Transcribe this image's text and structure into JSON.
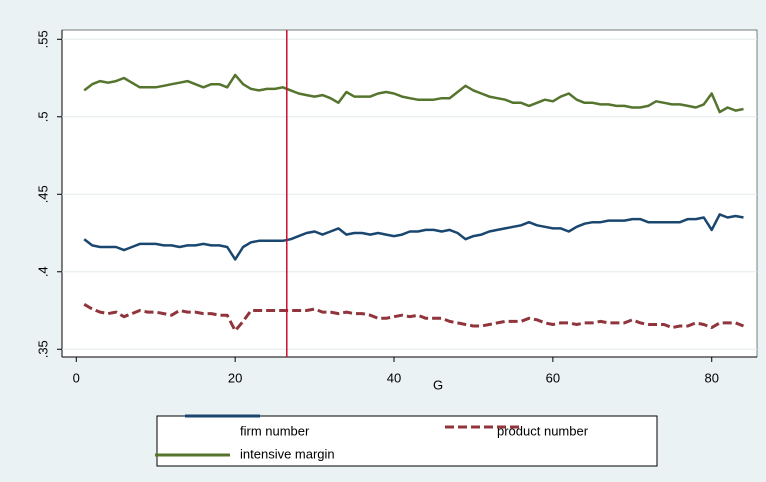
{
  "chart_data": {
    "type": "line",
    "xlabel": "G",
    "x": [
      1,
      2,
      3,
      4,
      5,
      6,
      7,
      8,
      9,
      10,
      11,
      12,
      13,
      14,
      15,
      16,
      17,
      18,
      19,
      20,
      21,
      22,
      23,
      24,
      25,
      26,
      27,
      28,
      29,
      30,
      31,
      32,
      33,
      34,
      35,
      36,
      37,
      38,
      39,
      40,
      41,
      42,
      43,
      44,
      45,
      46,
      47,
      48,
      49,
      50,
      51,
      52,
      53,
      54,
      55,
      56,
      57,
      58,
      59,
      60,
      61,
      62,
      63,
      64,
      65,
      66,
      67,
      68,
      69,
      70,
      71,
      72,
      73,
      74,
      75,
      76,
      77,
      78,
      79,
      80,
      81,
      82,
      83,
      84
    ],
    "series": [
      {
        "name": "firm number",
        "color": "#1a476f",
        "dash": false,
        "values": [
          0.421,
          0.417,
          0.416,
          0.416,
          0.416,
          0.414,
          0.416,
          0.418,
          0.418,
          0.418,
          0.417,
          0.417,
          0.416,
          0.417,
          0.417,
          0.418,
          0.417,
          0.417,
          0.416,
          0.408,
          0.416,
          0.419,
          0.42,
          0.42,
          0.42,
          0.42,
          0.421,
          0.423,
          0.425,
          0.426,
          0.424,
          0.426,
          0.428,
          0.424,
          0.425,
          0.425,
          0.424,
          0.425,
          0.424,
          0.423,
          0.424,
          0.426,
          0.426,
          0.427,
          0.427,
          0.426,
          0.427,
          0.425,
          0.421,
          0.423,
          0.424,
          0.426,
          0.427,
          0.428,
          0.429,
          0.43,
          0.432,
          0.43,
          0.429,
          0.428,
          0.428,
          0.426,
          0.429,
          0.431,
          0.432,
          0.432,
          0.433,
          0.433,
          0.433,
          0.434,
          0.434,
          0.432,
          0.432,
          0.432,
          0.432,
          0.432,
          0.434,
          0.434,
          0.435,
          0.427,
          0.437,
          0.435,
          0.436,
          0.435
        ]
      },
      {
        "name": "product number",
        "color": "#90353b",
        "dash": true,
        "values": [
          0.379,
          0.376,
          0.374,
          0.373,
          0.374,
          0.371,
          0.373,
          0.375,
          0.374,
          0.374,
          0.373,
          0.372,
          0.375,
          0.374,
          0.374,
          0.373,
          0.373,
          0.372,
          0.372,
          0.362,
          0.368,
          0.375,
          0.375,
          0.375,
          0.375,
          0.375,
          0.375,
          0.375,
          0.375,
          0.376,
          0.374,
          0.374,
          0.373,
          0.374,
          0.373,
          0.373,
          0.372,
          0.37,
          0.37,
          0.371,
          0.372,
          0.371,
          0.372,
          0.37,
          0.37,
          0.37,
          0.368,
          0.367,
          0.366,
          0.365,
          0.365,
          0.366,
          0.367,
          0.368,
          0.368,
          0.368,
          0.37,
          0.369,
          0.367,
          0.366,
          0.367,
          0.367,
          0.366,
          0.367,
          0.367,
          0.368,
          0.367,
          0.367,
          0.367,
          0.369,
          0.367,
          0.366,
          0.366,
          0.366,
          0.364,
          0.365,
          0.365,
          0.367,
          0.366,
          0.364,
          0.367,
          0.367,
          0.367,
          0.365
        ]
      },
      {
        "name": "intensive margin",
        "color": "#55752f",
        "dash": false,
        "values": [
          0.517,
          0.521,
          0.523,
          0.522,
          0.523,
          0.525,
          0.522,
          0.519,
          0.519,
          0.519,
          0.52,
          0.521,
          0.522,
          0.523,
          0.521,
          0.519,
          0.521,
          0.521,
          0.519,
          0.527,
          0.521,
          0.518,
          0.517,
          0.518,
          0.518,
          0.519,
          0.517,
          0.515,
          0.514,
          0.513,
          0.514,
          0.512,
          0.509,
          0.516,
          0.513,
          0.513,
          0.513,
          0.515,
          0.516,
          0.515,
          0.513,
          0.512,
          0.511,
          0.511,
          0.511,
          0.512,
          0.512,
          0.516,
          0.52,
          0.517,
          0.515,
          0.513,
          0.512,
          0.511,
          0.509,
          0.509,
          0.507,
          0.509,
          0.511,
          0.51,
          0.513,
          0.515,
          0.511,
          0.509,
          0.509,
          0.508,
          0.508,
          0.507,
          0.507,
          0.506,
          0.506,
          0.507,
          0.51,
          0.509,
          0.508,
          0.508,
          0.507,
          0.506,
          0.508,
          0.515,
          0.503,
          0.506,
          0.504,
          0.505
        ]
      }
    ],
    "xlim": [
      -1.8,
      85.7
    ],
    "xticks": [
      0,
      20,
      40,
      60,
      80
    ],
    "ylim": [
      0.345,
      0.556
    ],
    "yticks": [
      {
        "value": 0.35,
        "label": ".35"
      },
      {
        "value": 0.4,
        "label": ".4"
      },
      {
        "value": 0.45,
        "label": ".45"
      },
      {
        "value": 0.5,
        "label": ".5"
      },
      {
        "value": 0.55,
        "label": ".55"
      }
    ],
    "grid": true,
    "xline": 26.5,
    "xline_color": "#c8102e",
    "legend": "bottom"
  }
}
